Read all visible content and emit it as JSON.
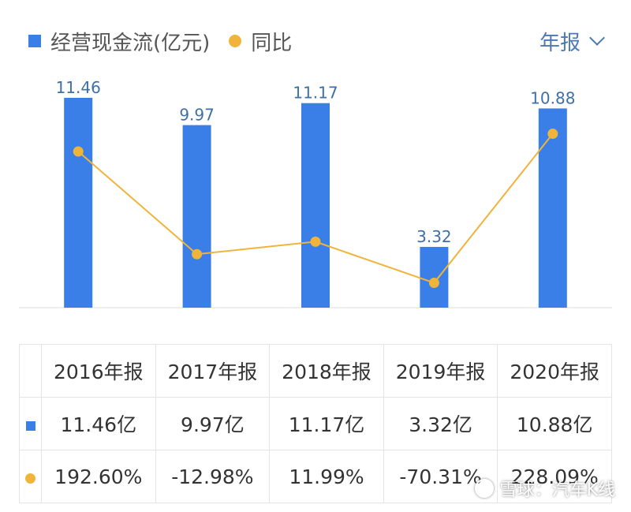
{
  "legend": {
    "bar_label": "经营现金流(亿元)",
    "line_label": "同比"
  },
  "period_selector": {
    "label": "年报"
  },
  "chart_data": {
    "type": "bar",
    "categories": [
      "2016年报",
      "2017年报",
      "2018年报",
      "2019年报",
      "2020年报"
    ],
    "series": [
      {
        "name": "经营现金流(亿元)",
        "type": "bar",
        "values": [
          11.46,
          9.97,
          11.17,
          3.32,
          10.88
        ],
        "labels": [
          "11.46",
          "9.97",
          "11.17",
          "3.32",
          "10.88"
        ],
        "color": "#3a7fe8"
      },
      {
        "name": "同比",
        "type": "line",
        "values": [
          192.6,
          -12.98,
          11.99,
          -70.31,
          228.09
        ],
        "color": "#f0b43a"
      }
    ],
    "ylim": [
      0,
      11.46
    ],
    "line_ylim": [
      -120,
      300
    ],
    "grid": false
  },
  "table": {
    "headers": [
      "2016年报",
      "2017年报",
      "2018年报",
      "2019年报",
      "2020年报"
    ],
    "bar_row": [
      "11.46亿",
      "9.97亿",
      "11.17亿",
      "3.32亿",
      "10.88亿"
    ],
    "line_row": [
      "192.60%",
      "-12.98%",
      "11.99%",
      "-70.31%",
      "228.09%"
    ]
  },
  "watermark": {
    "text": "雪球：汽车K线"
  },
  "colors": {
    "bar": "#3a7fe8",
    "line": "#f0b43a",
    "positive": "#c84a4a",
    "negative": "#2e9a5e",
    "accent": "#4a79b4"
  }
}
